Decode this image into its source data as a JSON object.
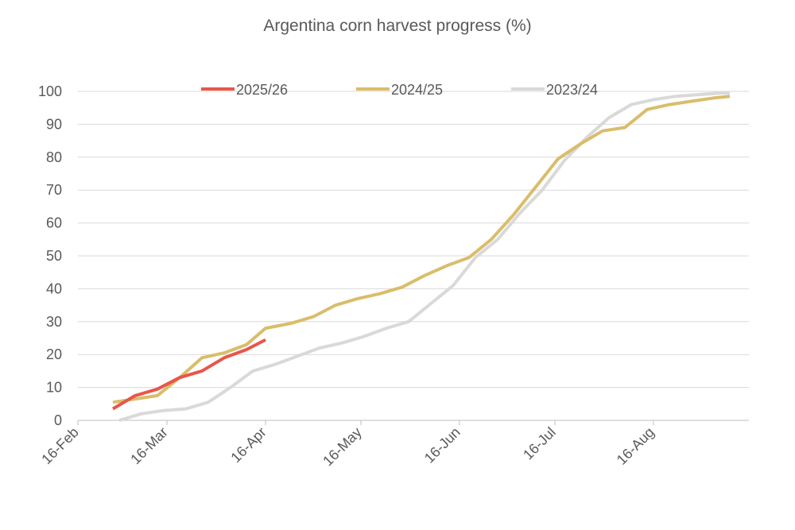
{
  "chart_data": {
    "type": "line",
    "title": "Argentina corn harvest progress (%)",
    "xlabel": "",
    "ylabel": "",
    "ylim": [
      0,
      100
    ],
    "yticks": [
      0,
      10,
      20,
      30,
      40,
      50,
      60,
      70,
      80,
      90,
      100
    ],
    "xlim": [
      "2025-02-16",
      "2025-09-15"
    ],
    "xticks": [
      {
        "date": "2025-02-16",
        "label": "16-Feb"
      },
      {
        "date": "2025-03-16",
        "label": "16-Mar"
      },
      {
        "date": "2025-04-16",
        "label": "16-Apr"
      },
      {
        "date": "2025-05-16",
        "label": "16-May"
      },
      {
        "date": "2025-06-16",
        "label": "16-Jun"
      },
      {
        "date": "2025-07-16",
        "label": "16-Jul"
      },
      {
        "date": "2025-08-16",
        "label": "16-Aug"
      }
    ],
    "grid": true,
    "legend_position": "top",
    "series": [
      {
        "name": "2025/26",
        "color": "#e8564a",
        "points": [
          [
            "2025-02-27",
            3.5
          ],
          [
            "2025-03-06",
            7.5
          ],
          [
            "2025-03-13",
            9.5
          ],
          [
            "2025-03-20",
            13
          ],
          [
            "2025-03-27",
            15
          ],
          [
            "2025-04-03",
            19
          ],
          [
            "2025-04-10",
            21.5
          ],
          [
            "2025-04-16",
            24.5
          ]
        ]
      },
      {
        "name": "2024/25",
        "color": "#d9bd6a",
        "points": [
          [
            "2025-02-27",
            5.5
          ],
          [
            "2025-03-06",
            6.5
          ],
          [
            "2025-03-13",
            7.5
          ],
          [
            "2025-03-20",
            13
          ],
          [
            "2025-03-27",
            19
          ],
          [
            "2025-04-03",
            20.5
          ],
          [
            "2025-04-10",
            23
          ],
          [
            "2025-04-16",
            28
          ],
          [
            "2025-04-24",
            29.5
          ],
          [
            "2025-05-01",
            31.5
          ],
          [
            "2025-05-08",
            35
          ],
          [
            "2025-05-15",
            37
          ],
          [
            "2025-05-22",
            38.5
          ],
          [
            "2025-05-29",
            40.5
          ],
          [
            "2025-06-05",
            44
          ],
          [
            "2025-06-12",
            47
          ],
          [
            "2025-06-19",
            49.5
          ],
          [
            "2025-06-26",
            55
          ],
          [
            "2025-07-03",
            62.5
          ],
          [
            "2025-07-10",
            71
          ],
          [
            "2025-07-17",
            79.5
          ],
          [
            "2025-07-24",
            84
          ],
          [
            "2025-07-31",
            88
          ],
          [
            "2025-08-07",
            89
          ],
          [
            "2025-08-14",
            94.5
          ],
          [
            "2025-08-21",
            96
          ],
          [
            "2025-08-28",
            97
          ],
          [
            "2025-09-04",
            98
          ],
          [
            "2025-09-09",
            98.5
          ]
        ]
      },
      {
        "name": "2023/24",
        "color": "#d9d9d9",
        "points": [
          [
            "2025-03-01",
            0
          ],
          [
            "2025-03-08",
            2
          ],
          [
            "2025-03-15",
            3
          ],
          [
            "2025-03-22",
            3.5
          ],
          [
            "2025-03-29",
            5.5
          ],
          [
            "2025-04-05",
            10
          ],
          [
            "2025-04-12",
            15
          ],
          [
            "2025-04-19",
            17
          ],
          [
            "2025-04-26",
            19.5
          ],
          [
            "2025-05-03",
            22
          ],
          [
            "2025-05-10",
            23.5
          ],
          [
            "2025-05-17",
            25.5
          ],
          [
            "2025-05-24",
            28
          ],
          [
            "2025-05-31",
            30
          ],
          [
            "2025-06-07",
            35.5
          ],
          [
            "2025-06-14",
            41
          ],
          [
            "2025-06-21",
            49.5
          ],
          [
            "2025-06-28",
            55
          ],
          [
            "2025-07-05",
            63
          ],
          [
            "2025-07-12",
            70
          ],
          [
            "2025-07-19",
            79
          ],
          [
            "2025-07-26",
            86
          ],
          [
            "2025-08-02",
            92
          ],
          [
            "2025-08-09",
            96
          ],
          [
            "2025-08-16",
            97.5
          ],
          [
            "2025-08-23",
            98.5
          ],
          [
            "2025-08-30",
            99
          ],
          [
            "2025-09-06",
            99.5
          ],
          [
            "2025-09-09",
            99.5
          ]
        ]
      }
    ]
  }
}
